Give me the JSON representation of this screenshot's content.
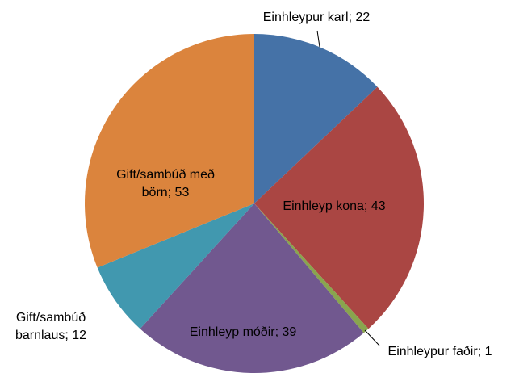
{
  "chart_data": {
    "type": "pie",
    "categories": [
      "Einhleypur karl",
      "Einhleyp kona",
      "Einhleypur faðir",
      "Einhleyp móðir",
      "Gift/sambúð barnlaus",
      "Gift/sambúð með börn"
    ],
    "values": [
      22,
      43,
      1,
      39,
      12,
      53
    ],
    "value_labels": [
      "Einhleypur karl; 22",
      "Einhleyp kona; 43",
      "Einhleypur faðir; 1",
      "Einhleyp móðir; 39",
      "Gift/sambúð barnlaus; 12",
      "Gift/sambúð með börn; 53"
    ],
    "colors": [
      "#4572a7",
      "#aa4643",
      "#89a54e",
      "#71588f",
      "#4198af",
      "#db843d"
    ]
  }
}
